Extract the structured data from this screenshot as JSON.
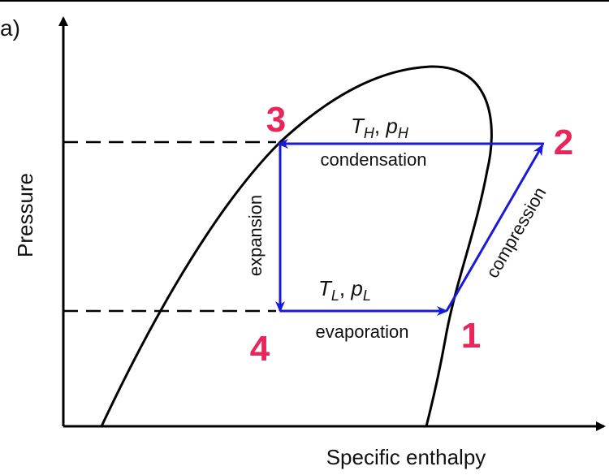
{
  "panel_label": "a)",
  "axes": {
    "y_label": "Pressure",
    "x_label": "Specific enthalpy"
  },
  "states": [
    "1",
    "2",
    "3",
    "4"
  ],
  "processes": {
    "condensation": "condensation",
    "expansion": "expansion",
    "evaporation": "evaporation",
    "compression": "compression"
  },
  "high_condition": {
    "t_symbol": "T",
    "t_sub": "H",
    "separator": ", ",
    "p_symbol": "p",
    "p_sub": "H"
  },
  "low_condition": {
    "t_symbol": "T",
    "t_sub": "L",
    "separator": ", ",
    "p_symbol": "p",
    "p_sub": "L"
  }
}
